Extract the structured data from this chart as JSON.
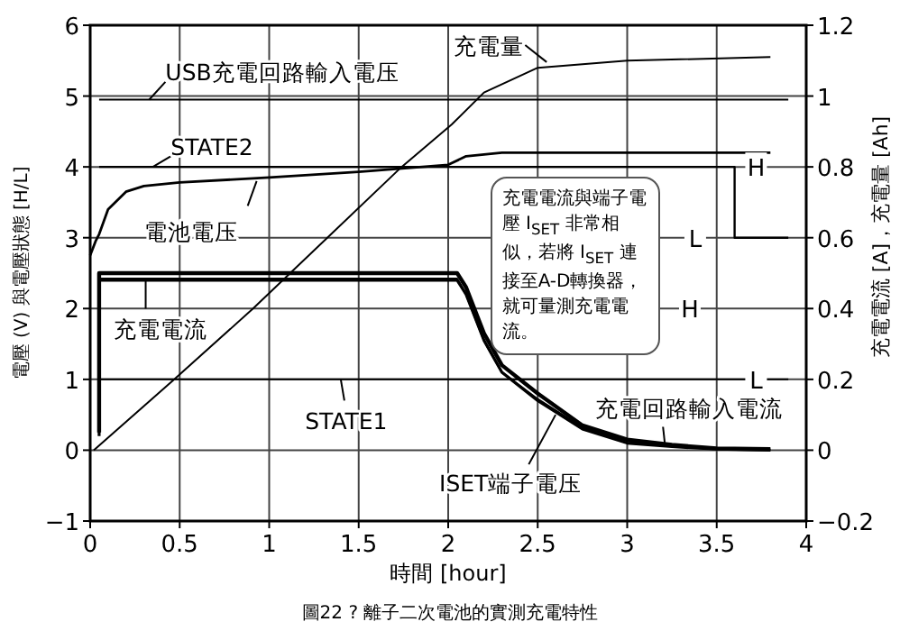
{
  "chart_data": {
    "type": "line",
    "title": "圖22 ? 離子二次電池的實測充電特性",
    "xlabel": "時間 [hour]",
    "ylabel": "電壓 (V) 與電壓狀態 [H/L]",
    "y2label": "充電電流 [A]，充電量 [Ah]",
    "xlim": [
      0,
      4
    ],
    "xticks": [
      0,
      0.5,
      1,
      1.5,
      2,
      2.5,
      3,
      3.5,
      4
    ],
    "ylim": [
      -1,
      6
    ],
    "yticks": [
      -1,
      0,
      1,
      2,
      3,
      4,
      5,
      6
    ],
    "y2lim": [
      -0.2,
      1.2
    ],
    "y2ticks": [
      -0.2,
      0,
      0.2,
      0.4,
      0.6,
      0.8,
      1,
      1.2
    ],
    "grid": true,
    "marker": "none",
    "line_style": "solid",
    "series": [
      {
        "color": "#000000",
        "x": [
          0.05,
          3.9
        ],
        "values": [
          4.95,
          4.95
        ]
      },
      {
        "color": "#000000",
        "x": [
          0.05,
          3.6,
          3.6,
          3.9
        ],
        "values": [
          4,
          4,
          3,
          3
        ]
      },
      {
        "color": "#000000",
        "x": [
          0.05,
          3.9
        ],
        "values": [
          1,
          1
        ]
      },
      {
        "color": "#000000",
        "x": [
          0,
          0.03,
          0.05,
          0.1,
          0.2,
          0.3,
          0.5,
          1,
          1.5,
          2,
          2.1,
          2.3,
          3.8
        ],
        "values": [
          2.75,
          2.95,
          3.05,
          3.4,
          3.65,
          3.73,
          3.78,
          3.85,
          3.93,
          4.03,
          4.15,
          4.2,
          4.2
        ]
      },
      {
        "color": "#000000",
        "axis": "y2",
        "x": [
          0.02,
          0.47,
          0.91,
          1.74,
          2.02,
          2.2,
          2.5,
          3,
          3.8
        ],
        "values": [
          0,
          0.2,
          0.4,
          0.8,
          0.92,
          1.01,
          1.08,
          1.1,
          1.11
        ]
      },
      {
        "color": "#000000",
        "axis": "y2",
        "x": [
          0.05,
          0.05,
          2.05,
          2.1,
          2.2,
          2.3,
          2.5,
          2.75,
          3,
          3.25,
          3.5,
          3.8
        ],
        "values": [
          0.05,
          0.5,
          0.5,
          0.46,
          0.33,
          0.24,
          0.16,
          0.07,
          0.03,
          0.015,
          0.005,
          0.003
        ]
      },
      {
        "color": "#000000",
        "axis": "y2",
        "x": [
          0.05,
          0.05,
          2.05,
          2.1,
          2.2,
          2.3,
          2.5,
          2.75,
          3,
          3.25,
          3.5,
          3.8
        ],
        "values": [
          0.04,
          0.48,
          0.48,
          0.44,
          0.31,
          0.22,
          0.14,
          0.06,
          0.02,
          0.01,
          0.003,
          0
        ]
      },
      {
        "color": "#000000",
        "x": [
          0.05,
          2.05,
          2.1,
          2.2,
          2.3,
          2.5,
          2.75,
          3,
          3.25,
          3.5,
          3.8
        ],
        "values": [
          2.42,
          2.42,
          2.2,
          1.55,
          1.1,
          0.72,
          0.32,
          0.13,
          0.06,
          0.02,
          0.01
        ]
      }
    ],
    "annotations": [
      {
        "text": "USB充電回路輸入電压",
        "x": 0.33,
        "y": 4.95
      },
      {
        "text": "STATE2",
        "x": 0.35,
        "y": 4
      },
      {
        "text": "電池電压",
        "x": 0.93,
        "y": 3.8
      },
      {
        "text": "充電電流",
        "x": 0.31,
        "y": 2.42
      },
      {
        "text": "STATE1",
        "x": 1.4,
        "y": 1
      },
      {
        "text": "ISET端子電压",
        "x": 2.6,
        "y": 0.5
      },
      {
        "text": "充電回路輸入電流",
        "x": 3.21,
        "y": 0.1
      },
      {
        "text": "充電量",
        "x": 2.55,
        "y": 5.48
      },
      "充電電流與端子電壓 I$_{SET}$ 非常相似，若將 I$_{SET}$ 連接至A-D轉換器，就可量測充電電流。",
      {
        "text": "H",
        "x": 3.72,
        "y": 4
      },
      {
        "text": "L",
        "x": 3.38,
        "y": 3
      },
      {
        "text": "H",
        "x": 3.35,
        "y": 2
      },
      {
        "text": "L",
        "x": 3.72,
        "y": 1
      }
    ]
  }
}
